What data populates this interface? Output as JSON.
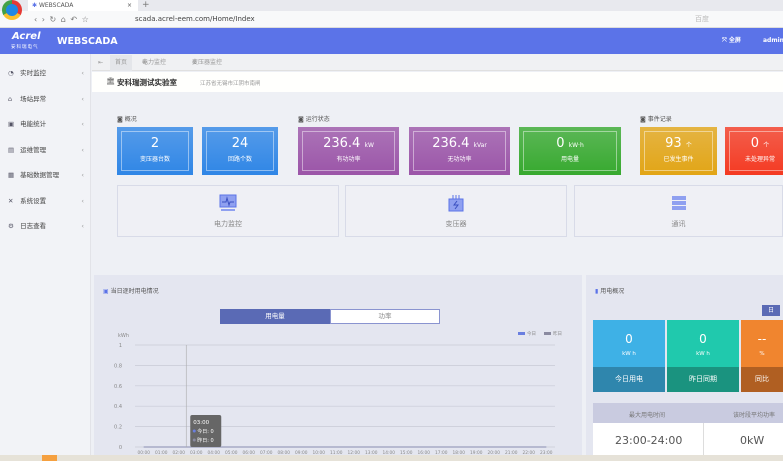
{
  "browser": {
    "tab_title": "WEBSCADA",
    "url": "scada.acrel-eem.com/Home/Index",
    "search_placeholder": "百度"
  },
  "header": {
    "logo": "Acrel",
    "logo_sub": "安科瑞电气",
    "app_name": "WEBSCADA",
    "fullscreen": "全屏",
    "user": "admin"
  },
  "sidebar": {
    "items": [
      {
        "label": "实时监控",
        "icon": "monitor-clock-icon"
      },
      {
        "label": "场站异常",
        "icon": "alert-building-icon"
      },
      {
        "label": "电能统计",
        "icon": "stats-icon"
      },
      {
        "label": "运维管理",
        "icon": "maintenance-icon"
      },
      {
        "label": "基础数据管理",
        "icon": "calendar-icon"
      },
      {
        "label": "系统设置",
        "icon": "tools-icon"
      },
      {
        "label": "日志查看",
        "icon": "gears-icon"
      }
    ]
  },
  "tabs": [
    "首页",
    "电力监控",
    "变压器监控"
  ],
  "site": {
    "name": "安科瑞测试实验室",
    "address": "江苏省无锡市江阴市南闸"
  },
  "sections": {
    "overview": "概况",
    "running": "运行状态",
    "events": "事件记录"
  },
  "cards": [
    {
      "value": "2",
      "unit": "",
      "label": "变压器台数",
      "color": "#2f86e6"
    },
    {
      "value": "24",
      "unit": "",
      "label": "回路个数",
      "color": "#2f86e6"
    },
    {
      "value": "236.4",
      "unit": "kW",
      "label": "有功功率",
      "color": "#9b55a8"
    },
    {
      "value": "236.4",
      "unit": "kVar",
      "label": "无功功率",
      "color": "#9b55a8"
    },
    {
      "value": "0",
      "unit": "kW·h",
      "label": "用电量",
      "color": "#37a92f"
    },
    {
      "value": "93",
      "unit": "个",
      "label": "已发生事件",
      "color": "#e2a516"
    },
    {
      "value": "0",
      "unit": "个",
      "label": "未处理异常",
      "color": "#f43a22"
    }
  ],
  "shortcuts": [
    "电力监控",
    "变压器",
    "通讯"
  ],
  "chart_panel": {
    "title": "当日逐时用电情况",
    "toggle": [
      "用电量",
      "功率"
    ],
    "active_toggle": 0
  },
  "chart_data": {
    "type": "line",
    "ylabel": "kWh",
    "ylim": [
      0,
      1
    ],
    "yticks": [
      "0",
      "0.2",
      "0.4",
      "0.6",
      "0.8",
      "1"
    ],
    "categories": [
      "00:00",
      "01:00",
      "02:00",
      "03:00",
      "04:00",
      "05:00",
      "06:00",
      "07:00",
      "08:00",
      "09:00",
      "10:00",
      "11:00",
      "12:00",
      "13:00",
      "14:00",
      "15:00",
      "16:00",
      "17:00",
      "18:00",
      "19:00",
      "20:00",
      "21:00",
      "22:00",
      "23:00"
    ],
    "series": [
      {
        "name": "今日",
        "color": "#6a7fe0",
        "values": [
          0,
          0,
          0,
          0,
          0,
          0,
          0,
          0,
          0,
          0,
          0,
          0,
          0,
          0,
          0,
          0,
          0,
          0,
          0,
          0,
          0,
          0,
          0,
          0
        ]
      },
      {
        "name": "昨日",
        "color": "#8a8aa0",
        "values": [
          0,
          0,
          0,
          0,
          0,
          0,
          0,
          0,
          0,
          0,
          0,
          0,
          0,
          0,
          0,
          0,
          0,
          0,
          0,
          0,
          0,
          0,
          0,
          0
        ]
      }
    ],
    "legend": "top-right",
    "tooltip": {
      "time": "03:00",
      "today": "今日: 0",
      "yesterday": "昨日: 0"
    }
  },
  "usage_panel": {
    "title": "用电概况",
    "period": "日",
    "cards": [
      {
        "value": "0",
        "unit": "kW h",
        "label": "今日用电",
        "color": "#3eb1e6",
        "dark": "#2f86ad"
      },
      {
        "value": "0",
        "unit": "kW h",
        "label": "昨日同期",
        "color": "#20c9ad",
        "dark": "#1a937f"
      },
      {
        "value": "--",
        "unit": "%",
        "label": "同比",
        "color": "#f0852f",
        "dark": "#b05f22"
      }
    ],
    "table": {
      "headers": [
        "最大用电时间",
        "该时段平均功率"
      ],
      "values": [
        "23:00-24:00",
        "0kW"
      ]
    }
  }
}
